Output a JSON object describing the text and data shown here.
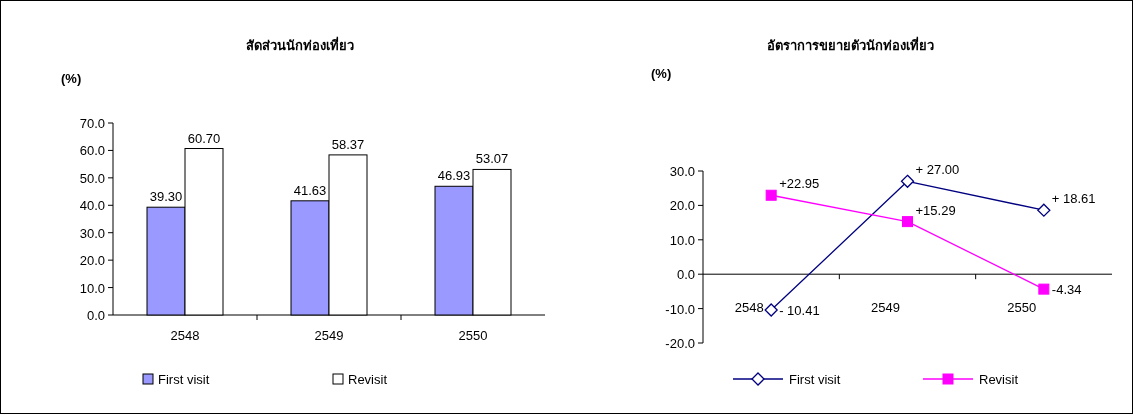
{
  "chart_data": [
    {
      "type": "bar",
      "title": "สัดส่วนนักท่องเที่ยว",
      "ylabel": "(%)",
      "categories": [
        "2548",
        "2549",
        "2550"
      ],
      "ylim": [
        0,
        70
      ],
      "yticks": [
        {
          "value": 0,
          "label": "0.0"
        },
        {
          "value": 10,
          "label": "10.0"
        },
        {
          "value": 20,
          "label": "20.0"
        },
        {
          "value": 30,
          "label": "30.0"
        },
        {
          "value": 40,
          "label": "40.0"
        },
        {
          "value": 50,
          "label": "50.0"
        },
        {
          "value": 60,
          "label": "60.0"
        },
        {
          "value": 70,
          "label": "70.0"
        }
      ],
      "legend": "bottom",
      "series": [
        {
          "name": "First visit",
          "color": "#9999ff",
          "values": [
            39.3,
            41.63,
            46.93
          ],
          "value_labels": [
            "39.30",
            "41.63",
            "46.93"
          ]
        },
        {
          "name": "Revisit",
          "color": "#ffffff",
          "values": [
            60.7,
            58.37,
            53.07
          ],
          "value_labels": [
            "60.70",
            "58.37",
            "53.07"
          ]
        }
      ]
    },
    {
      "type": "line",
      "title": "อัตราการขยายตัวนักท่องเที่ยว",
      "ylabel": "(%)",
      "categories": [
        "2548",
        "2549",
        "2550"
      ],
      "ylim": [
        -20,
        30
      ],
      "yticks": [
        {
          "value": -20,
          "label": "-20.0"
        },
        {
          "value": -10,
          "label": "-10.0"
        },
        {
          "value": 0,
          "label": "0.0"
        },
        {
          "value": 10,
          "label": "10.0"
        },
        {
          "value": 20,
          "label": "20.0"
        },
        {
          "value": 30,
          "label": "30.0"
        }
      ],
      "legend": "bottom",
      "series": [
        {
          "name": "First visit",
          "color": "#000080",
          "marker": "diamond",
          "values": [
            -10.41,
            27.0,
            18.61
          ],
          "value_labels": [
            "- 10.41",
            "+ 27.00",
            "+ 18.61"
          ]
        },
        {
          "name": "Revisit",
          "color": "#ff00ff",
          "marker": "square",
          "values": [
            22.95,
            15.29,
            -4.34
          ],
          "value_labels": [
            "+22.95",
            "+15.29",
            "-4.34"
          ]
        }
      ]
    }
  ]
}
